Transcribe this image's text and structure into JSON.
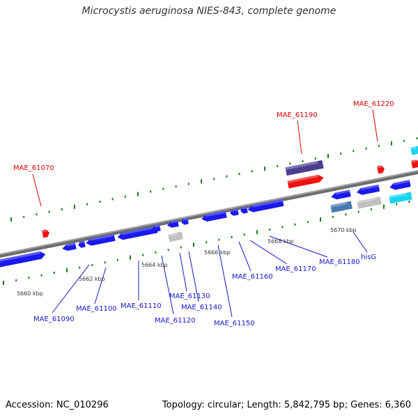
{
  "title": "Microcystis aeruginosa NIES-843, complete genome",
  "footer": {
    "accession": "Accession: NC_010296",
    "summary": "Topology: circular; Length: 5,842,795 bp; Genes: 6,360"
  },
  "colors": {
    "forward_gene": "#1a1aee",
    "reverse_gene": "#1a1aee",
    "rna": "#ee1111",
    "pseudo": "#c0c0c0",
    "steel": "#4a7ab4",
    "purple": "#4b3f8f",
    "cyan": "#1ad4f0",
    "backbone": "#808080",
    "tick": "#1a7a1a",
    "label_blue": "#1515cc",
    "label_red": "#dd0000"
  },
  "scale_ticks": [
    "5660 kbp",
    "5662 kbp",
    "5664 kbp",
    "5666 kbp",
    "5668 kbp",
    "5670 kbp"
  ],
  "gene_labels_top": [
    {
      "id": "MAE_61070",
      "color": "red"
    },
    {
      "id": "MAE_61190",
      "color": "red"
    },
    {
      "id": "MAE_61220",
      "color": "red"
    }
  ],
  "gene_labels_bottom": [
    {
      "id": "MAE_61090"
    },
    {
      "id": "MAE_61100"
    },
    {
      "id": "MAE_61110"
    },
    {
      "id": "MAE_61120"
    },
    {
      "id": "MAE_61130"
    },
    {
      "id": "MAE_61140"
    },
    {
      "id": "MAE_61150"
    },
    {
      "id": "MAE_61160"
    },
    {
      "id": "MAE_61170"
    },
    {
      "id": "MAE_61180"
    },
    {
      "id": "hisG"
    }
  ]
}
